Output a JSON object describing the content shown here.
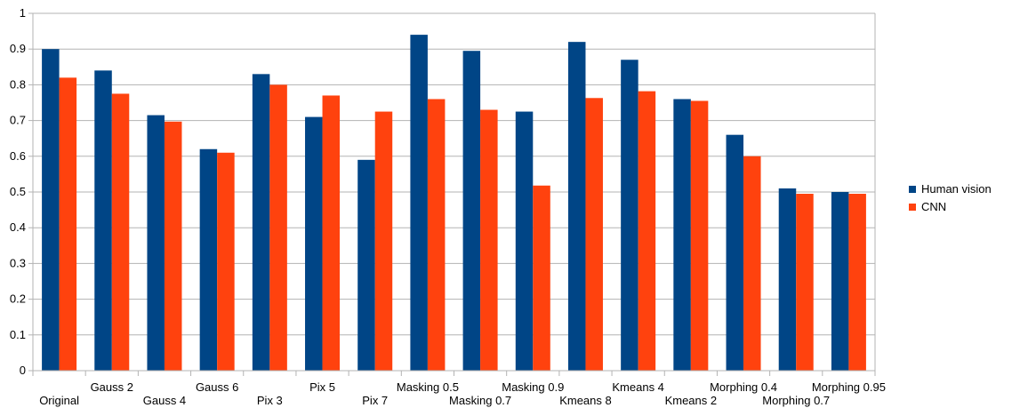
{
  "chart_data": {
    "type": "bar",
    "title": "",
    "xlabel": "",
    "ylabel": "",
    "ylim": [
      0,
      1
    ],
    "yticks": [
      "0",
      "0.1",
      "0.2",
      "0.3",
      "0.4",
      "0.5",
      "0.6",
      "0.7",
      "0.8",
      "0.9",
      "1"
    ],
    "grid": true,
    "legend_position": "right",
    "categories": [
      "Original",
      "Gauss 2",
      "Gauss 4",
      "Gauss 6",
      "Pix 3",
      "Pix 5",
      "Pix 7",
      "Masking 0.5",
      "Masking 0.7",
      "Masking 0.9",
      "Kmeans 8",
      "Kmeans 4",
      "Kmeans 2",
      "Morphing 0.4",
      "Morphing 0.7",
      "Morphing 0.95"
    ],
    "series": [
      {
        "name": "Human vision",
        "color": "#004586",
        "values": [
          0.9,
          0.84,
          0.715,
          0.62,
          0.83,
          0.71,
          0.59,
          0.94,
          0.895,
          0.725,
          0.92,
          0.87,
          0.76,
          0.66,
          0.51,
          0.5
        ]
      },
      {
        "name": "CNN",
        "color": "#ff420e",
        "values": [
          0.82,
          0.775,
          0.697,
          0.61,
          0.8,
          0.77,
          0.725,
          0.76,
          0.73,
          0.518,
          0.763,
          0.782,
          0.755,
          0.6,
          0.495,
          0.495
        ]
      }
    ]
  }
}
